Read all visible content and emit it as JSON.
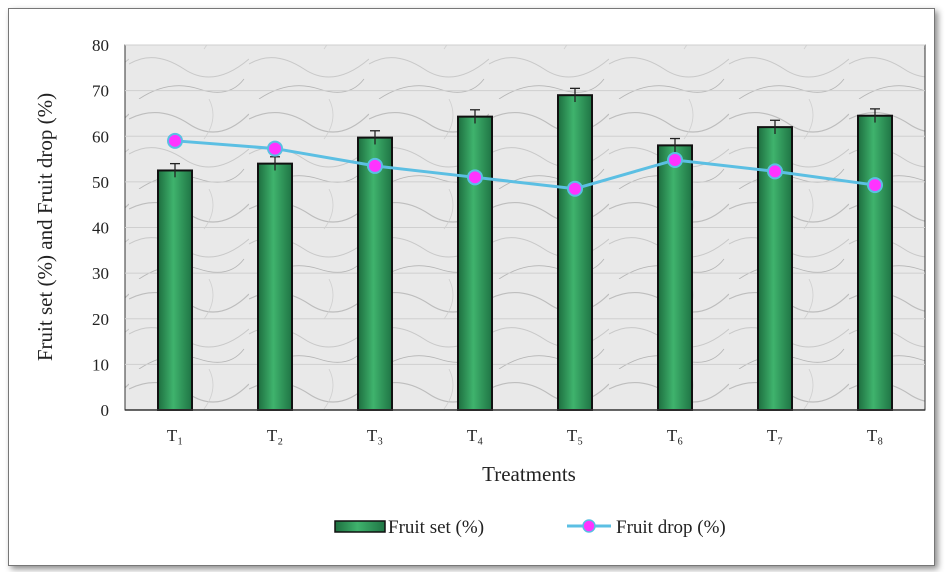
{
  "chart_data": {
    "type": "bar",
    "categories": [
      "T₁",
      "T₂",
      "T₃",
      "T₄",
      "T₅",
      "T₆",
      "T₇",
      "T₈"
    ],
    "series": [
      {
        "name": "Fruit set (%)",
        "kind": "bar",
        "values": [
          52.5,
          54.0,
          59.7,
          64.3,
          69.0,
          58.0,
          62.0,
          64.5
        ],
        "errors": [
          1.5,
          1.5,
          1.5,
          1.5,
          1.5,
          1.5,
          1.5,
          1.5
        ],
        "color": "#2e9e5b"
      },
      {
        "name": "Fruit drop  (%)",
        "kind": "line",
        "values": [
          59.0,
          57.3,
          53.5,
          51.0,
          48.5,
          54.8,
          52.3,
          49.3
        ],
        "line_color": "#5bbfe3",
        "marker_color": "#ff33ff"
      }
    ],
    "title": "",
    "xlabel": "Treatments",
    "ylabel": "Fruit set (%) and Fruit drop  (%)",
    "ylim": [
      0,
      80
    ],
    "yticks": [
      0,
      10,
      20,
      30,
      40,
      50,
      60,
      70,
      80
    ],
    "grid": true,
    "legend_position": "bottom"
  }
}
